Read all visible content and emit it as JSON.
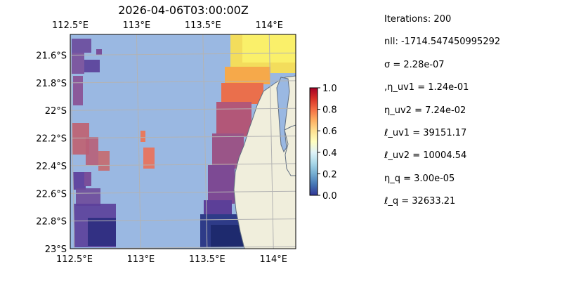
{
  "title": "2026-04-06T03:00:00Z",
  "map": {
    "lon_range": [
      112.5,
      114.2
    ],
    "lat_range": [
      -23.0,
      -21.45
    ],
    "lon_ticks": [
      {
        "value": 112.5,
        "label": "112.5°E"
      },
      {
        "value": 113.0,
        "label": "113°E"
      },
      {
        "value": 113.5,
        "label": "113.5°E"
      },
      {
        "value": 114.0,
        "label": "114°E"
      }
    ],
    "lat_ticks": [
      {
        "value": -21.6,
        "label": "21.6°S"
      },
      {
        "value": -21.8,
        "label": "21.8°S"
      },
      {
        "value": -22.0,
        "label": "22°S"
      },
      {
        "value": -22.2,
        "label": "22.2°S"
      },
      {
        "value": -22.4,
        "label": "22.4°S"
      },
      {
        "value": -22.6,
        "label": "22.6°S"
      },
      {
        "value": -22.8,
        "label": "22.8°S"
      },
      {
        "value": -23.0,
        "label": "23°S"
      }
    ],
    "ocean_color": "#9ab8e2",
    "land_color": "#f0eedc",
    "coast_color": "#5f6d80",
    "grid_color": "#b3b3b3",
    "colormap": "RdYlBu_r",
    "colorbar": {
      "range": [
        0.0,
        1.0
      ],
      "ticks": [
        {
          "value": 0.0,
          "label": "0.0"
        },
        {
          "value": 0.2,
          "label": "0.2"
        },
        {
          "value": 0.4,
          "label": "0.4"
        },
        {
          "value": 0.6,
          "label": "0.6"
        },
        {
          "value": 0.8,
          "label": "0.8"
        },
        {
          "value": 1.0,
          "label": "1.0"
        }
      ]
    }
  },
  "params": [
    {
      "id": "iterations",
      "text": "Iterations: 200"
    },
    {
      "id": "nll",
      "text": "nll: -1714.547450995292"
    },
    {
      "id": "sigma",
      "text": "σ = 2.28e-07"
    },
    {
      "id": "eta-uv1",
      "text": ",η_uv1 = 1.24e-01"
    },
    {
      "id": "eta-uv2",
      "text": "η_uv2 = 7.24e-02"
    },
    {
      "id": "ell-uv1",
      "text": "ℓ_uv1 = 39151.17"
    },
    {
      "id": "ell-uv2",
      "text": "ℓ_uv2 = 10004.54"
    },
    {
      "id": "eta-q",
      "text": "η_q = 3.00e-05"
    },
    {
      "id": "ell-q",
      "text": "ℓ_q = 32633.21"
    }
  ]
}
